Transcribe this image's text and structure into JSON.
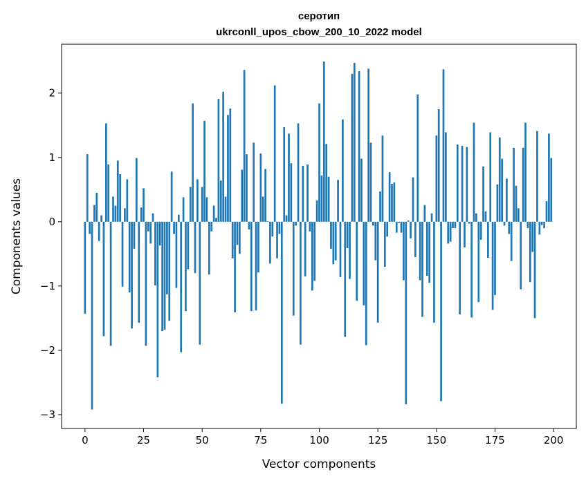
{
  "chart_data": {
    "type": "bar",
    "title_lines": [
      "серотип",
      "ukrconll_upos_cbow_200_10_2022 model"
    ],
    "xlabel": "Vector components",
    "ylabel": "Components values",
    "xlim": [
      -10,
      209.7
    ],
    "ylim": [
      -3.215,
      2.76
    ],
    "xticks": [
      0,
      25,
      50,
      75,
      100,
      125,
      150,
      175,
      200
    ],
    "yticks": [
      -3,
      -2,
      -1,
      0,
      1,
      2
    ],
    "grid": false,
    "bar_color": "#1f77b4",
    "values": [
      -1.43,
      1.05,
      -0.19,
      -2.92,
      0.26,
      0.45,
      -0.3,
      0.1,
      -1.78,
      1.53,
      0.89,
      -1.93,
      0.39,
      0.25,
      0.95,
      0.74,
      -1.01,
      0.21,
      0.66,
      -1.1,
      -1.66,
      -0.42,
      0.99,
      -1.57,
      0.22,
      0.52,
      -1.93,
      -0.15,
      -0.34,
      0.13,
      -0.99,
      -2.42,
      -0.37,
      -1.7,
      -1.68,
      -1.13,
      -1.54,
      0.78,
      -0.19,
      -1.03,
      0.11,
      -2.03,
      0.38,
      -1.39,
      -0.74,
      0.54,
      1.84,
      -0.8,
      0.66,
      -1.91,
      0.54,
      1.57,
      0.38,
      -0.82,
      -0.15,
      0.25,
      0.06,
      1.91,
      0.64,
      2.02,
      0.39,
      1.66,
      1.76,
      -0.57,
      -1.41,
      -0.36,
      -0.5,
      0.81,
      2.36,
      1.05,
      -0.12,
      -1.39,
      1.23,
      -1.38,
      -0.79,
      1.06,
      0.39,
      0.82,
      0.01,
      -0.65,
      -0.23,
      2.12,
      -0.57,
      -0.19,
      -2.83,
      1.47,
      0.1,
      1.37,
      0.91,
      -1.46,
      -0.06,
      1.53,
      -1.91,
      0.87,
      -0.85,
      0.89,
      -0.15,
      -1.07,
      -0.92,
      0.33,
      1.84,
      0.72,
      2.49,
      1.21,
      0.7,
      -0.42,
      -0.66,
      -0.6,
      0.65,
      -0.86,
      1.59,
      -1.79,
      -0.41,
      -0.89,
      2.3,
      2.47,
      -1.23,
      2.34,
      0.98,
      -1.3,
      -1.92,
      2.38,
      1.23,
      -0.06,
      -0.6,
      -1.57,
      0.47,
      1.34,
      -0.7,
      -0.23,
      0.77,
      0.59,
      0.61,
      -0.17,
      -0.02,
      -0.17,
      -0.91,
      -2.84,
      0.02,
      -0.26,
      0.69,
      -0.55,
      1.98,
      -0.91,
      -1.48,
      0.26,
      -0.84,
      -0.95,
      0.13,
      -1.57,
      1.34,
      1.75,
      -2.79,
      2.37,
      1.39,
      -0.34,
      -0.31,
      -0.1,
      -0.1,
      1.2,
      -1.44,
      1.18,
      -0.4,
      1.16,
      -0.03,
      -1.49,
      1.54,
      0.13,
      -1.25,
      -0.28,
      0.86,
      0.16,
      -0.56,
      1.39,
      -1.37,
      -1.14,
      0.58,
      1.31,
      0.98,
      -0.06,
      0.67,
      -0.19,
      -0.61,
      1.15,
      0.56,
      0.21,
      -1.05,
      1.15,
      1.54,
      -0.1,
      -0.94,
      -0.47,
      -1.5,
      1.41,
      -0.2,
      -0.05,
      -0.1,
      0.32,
      1.37,
      0.99
    ]
  }
}
